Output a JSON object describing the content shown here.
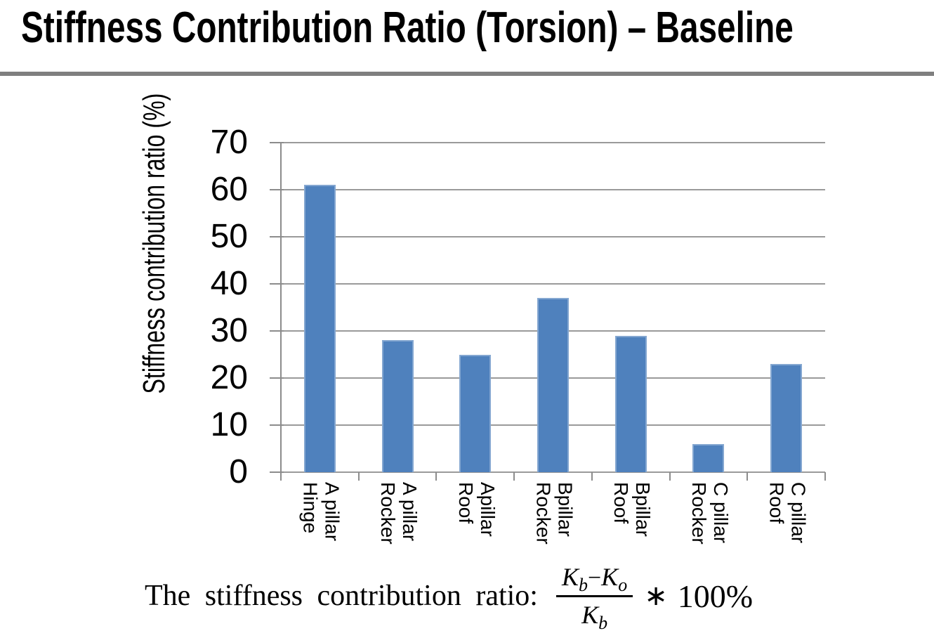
{
  "slide": {
    "title": "Stiffness Contribution Ratio (Torsion) – Baseline"
  },
  "chart_data": {
    "type": "bar",
    "title": "",
    "xlabel": "",
    "ylabel": "Stiffness contribution ratio (%)",
    "ylim": [
      0,
      70
    ],
    "yticks": [
      70,
      60,
      50,
      40,
      30,
      20,
      10,
      0
    ],
    "grid": true,
    "legend_position": "none",
    "bar_color": "#4F81BD",
    "categories": [
      [
        "A pillar",
        "Hinge"
      ],
      [
        "A pillar",
        "Rocker"
      ],
      [
        "Apillar",
        "Roof"
      ],
      [
        "Bpillar",
        "Rocker"
      ],
      [
        "Bpillar",
        "Roof"
      ],
      [
        "C pillar",
        "Rocker"
      ],
      [
        "C pillar",
        "Roof"
      ]
    ],
    "values": [
      61,
      28,
      25,
      37,
      29,
      6,
      23
    ]
  },
  "formula": {
    "prefix": "The stiffness contribution ratio:",
    "k": "K",
    "sub_b": "b",
    "minus": "−",
    "sub_o": "o",
    "operator": "∗",
    "suffix": "100%"
  },
  "colors": {
    "bar_fill": "#4F81BD",
    "bar_border": "#84a7d1",
    "gridline": "#9a9a9a",
    "axis": "#8c8c8c",
    "title_rule": "#7f7f7f",
    "text": "#000000"
  }
}
